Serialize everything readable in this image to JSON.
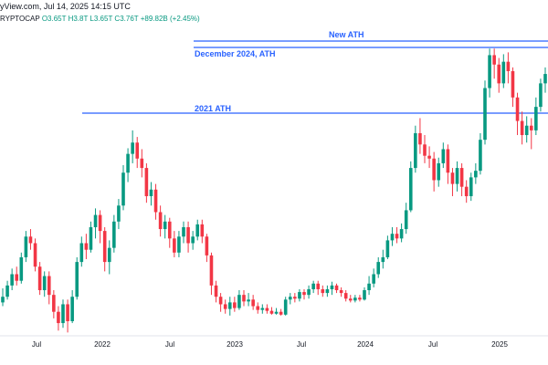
{
  "header": {
    "source_line": "yView.com, Jul 14, 2025 14:15 UTC",
    "symbol": "RYPTOCAP",
    "ohlc": "O3.65T H3.8T L3.65T C3.76T +89.82B (+2.45%)"
  },
  "chart_data": {
    "type": "candlestick",
    "x_tick_labels": [
      "Jul",
      "2022",
      "Jul",
      "2023",
      "Jul",
      "2024",
      "Jul",
      "2025"
    ],
    "annotations": [
      {
        "text": "New ATH"
      },
      {
        "text": "December 2024, ATH"
      },
      {
        "text": "2021 ATH"
      }
    ],
    "colors": {
      "up": "#089981",
      "down": "#f23645",
      "lines": "#2962ff",
      "grid": "#f0f3fa",
      "axis": "#131722"
    },
    "grid": false,
    "candles": [
      [
        0.92,
        0.98,
        0.88,
        1.07
      ],
      [
        0.98,
        1.1,
        0.95,
        1.15
      ],
      [
        1.1,
        1.22,
        1.05,
        1.28
      ],
      [
        1.22,
        1.15,
        1.1,
        1.3
      ],
      [
        1.15,
        1.4,
        1.12,
        1.45
      ],
      [
        1.4,
        1.62,
        1.35,
        1.68
      ],
      [
        1.62,
        1.55,
        1.48,
        1.7
      ],
      [
        1.55,
        1.3,
        1.25,
        1.6
      ],
      [
        1.3,
        1.05,
        1.0,
        1.35
      ],
      [
        1.05,
        1.2,
        0.98,
        1.25
      ],
      [
        1.2,
        1.0,
        0.9,
        1.25
      ],
      [
        1.0,
        0.82,
        0.75,
        1.05
      ],
      [
        0.82,
        0.7,
        0.62,
        0.88
      ],
      [
        0.7,
        0.9,
        0.65,
        0.95
      ],
      [
        0.9,
        0.72,
        0.6,
        0.95
      ],
      [
        0.72,
        0.98,
        0.7,
        1.05
      ],
      [
        0.98,
        1.35,
        0.95,
        1.4
      ],
      [
        1.35,
        1.55,
        1.3,
        1.62
      ],
      [
        1.55,
        1.48,
        1.38,
        1.65
      ],
      [
        1.48,
        1.72,
        1.45,
        1.78
      ],
      [
        1.72,
        1.85,
        1.6,
        1.92
      ],
      [
        1.85,
        1.68,
        1.55,
        1.9
      ],
      [
        1.68,
        1.35,
        1.25,
        1.72
      ],
      [
        1.35,
        1.5,
        1.22,
        1.58
      ],
      [
        1.5,
        1.78,
        1.45,
        1.85
      ],
      [
        1.78,
        1.95,
        1.7,
        2.02
      ],
      [
        1.95,
        2.3,
        1.9,
        2.38
      ],
      [
        2.3,
        2.5,
        2.2,
        2.56
      ],
      [
        2.5,
        2.62,
        2.4,
        2.75
      ],
      [
        2.62,
        2.45,
        2.35,
        2.68
      ],
      [
        2.45,
        2.35,
        2.25,
        2.55
      ],
      [
        2.35,
        2.05,
        1.98,
        2.4
      ],
      [
        2.05,
        2.12,
        1.95,
        2.2
      ],
      [
        2.12,
        1.88,
        1.8,
        2.18
      ],
      [
        1.88,
        1.7,
        1.62,
        1.95
      ],
      [
        1.7,
        1.78,
        1.6,
        1.85
      ],
      [
        1.78,
        1.6,
        1.5,
        1.82
      ],
      [
        1.6,
        1.45,
        1.4,
        1.68
      ],
      [
        1.45,
        1.62,
        1.4,
        1.68
      ],
      [
        1.62,
        1.72,
        1.55,
        1.78
      ],
      [
        1.72,
        1.55,
        1.45,
        1.78
      ],
      [
        1.55,
        1.62,
        1.48,
        1.68
      ],
      [
        1.62,
        1.75,
        1.58,
        1.8
      ],
      [
        1.75,
        1.62,
        1.55,
        1.8
      ],
      [
        1.62,
        1.42,
        1.35,
        1.65
      ],
      [
        1.42,
        1.1,
        1.0,
        1.45
      ],
      [
        1.1,
        0.98,
        0.92,
        1.15
      ],
      [
        0.98,
        0.9,
        0.82,
        1.02
      ],
      [
        0.9,
        0.85,
        0.8,
        0.95
      ],
      [
        0.85,
        0.92,
        0.78,
        0.98
      ],
      [
        0.92,
        0.86,
        0.82,
        0.98
      ],
      [
        0.86,
        1.0,
        0.84,
        1.05
      ],
      [
        1.0,
        0.93,
        0.88,
        1.05
      ],
      [
        0.93,
        0.95,
        0.88,
        1.02
      ],
      [
        0.95,
        0.88,
        0.84,
        1.0
      ],
      [
        0.88,
        0.84,
        0.8,
        0.92
      ],
      [
        0.84,
        0.86,
        0.8,
        0.9
      ],
      [
        0.86,
        0.83,
        0.8,
        0.9
      ],
      [
        0.83,
        0.8,
        0.79,
        0.87
      ],
      [
        0.8,
        0.82,
        0.79,
        0.86
      ],
      [
        0.82,
        0.79,
        0.78,
        0.85
      ],
      [
        0.79,
        0.95,
        0.78,
        0.98
      ],
      [
        0.95,
        0.98,
        0.9,
        1.02
      ],
      [
        0.98,
        0.96,
        0.92,
        1.02
      ],
      [
        0.96,
        1.03,
        0.93,
        1.06
      ],
      [
        1.03,
        1.0,
        0.95,
        1.06
      ],
      [
        1.0,
        1.06,
        0.96,
        1.1
      ],
      [
        1.06,
        1.12,
        1.02,
        1.15
      ],
      [
        1.12,
        1.06,
        1.0,
        1.15
      ],
      [
        1.06,
        1.02,
        0.98,
        1.1
      ],
      [
        1.02,
        1.06,
        0.98,
        1.1
      ],
      [
        1.06,
        1.1,
        1.0,
        1.14
      ],
      [
        1.1,
        1.05,
        1.02,
        1.12
      ],
      [
        1.05,
        1.02,
        0.98,
        1.08
      ],
      [
        1.02,
        0.96,
        0.93,
        1.05
      ],
      [
        0.96,
        0.94,
        0.92,
        1.0
      ],
      [
        0.94,
        0.97,
        0.92,
        1.0
      ],
      [
        0.97,
        0.95,
        0.93,
        1.0
      ],
      [
        0.95,
        1.05,
        0.94,
        1.08
      ],
      [
        1.05,
        1.12,
        1.0,
        1.2
      ],
      [
        1.12,
        1.22,
        1.08,
        1.28
      ],
      [
        1.22,
        1.35,
        1.18,
        1.4
      ],
      [
        1.35,
        1.4,
        1.28,
        1.48
      ],
      [
        1.4,
        1.58,
        1.38,
        1.63
      ],
      [
        1.58,
        1.65,
        1.52,
        1.72
      ],
      [
        1.65,
        1.6,
        1.55,
        1.72
      ],
      [
        1.6,
        1.7,
        1.56,
        1.76
      ],
      [
        1.7,
        1.9,
        1.65,
        1.98
      ],
      [
        1.9,
        2.35,
        1.88,
        2.42
      ],
      [
        2.35,
        2.72,
        2.3,
        2.8
      ],
      [
        2.72,
        2.6,
        2.5,
        2.88
      ],
      [
        2.6,
        2.48,
        2.4,
        2.7
      ],
      [
        2.48,
        2.45,
        2.35,
        2.58
      ],
      [
        2.45,
        2.22,
        2.1,
        2.52
      ],
      [
        2.22,
        2.4,
        2.15,
        2.46
      ],
      [
        2.4,
        2.55,
        2.35,
        2.62
      ],
      [
        2.55,
        2.3,
        2.18,
        2.6
      ],
      [
        2.3,
        2.18,
        2.05,
        2.35
      ],
      [
        2.18,
        2.35,
        2.1,
        2.42
      ],
      [
        2.35,
        2.15,
        2.05,
        2.4
      ],
      [
        2.15,
        2.05,
        1.98,
        2.22
      ],
      [
        2.05,
        2.25,
        2.0,
        2.3
      ],
      [
        2.25,
        2.32,
        2.18,
        2.4
      ],
      [
        2.32,
        2.65,
        2.28,
        2.72
      ],
      [
        2.65,
        3.2,
        2.6,
        3.28
      ],
      [
        3.2,
        3.55,
        3.1,
        3.62
      ],
      [
        3.55,
        3.45,
        3.3,
        3.62
      ],
      [
        3.45,
        3.25,
        3.15,
        3.52
      ],
      [
        3.25,
        3.48,
        3.2,
        3.56
      ],
      [
        3.48,
        3.38,
        3.25,
        3.58
      ],
      [
        3.38,
        3.1,
        3.0,
        3.42
      ],
      [
        3.1,
        2.85,
        2.7,
        3.15
      ],
      [
        2.85,
        2.7,
        2.6,
        2.95
      ],
      [
        2.7,
        2.8,
        2.62,
        2.9
      ],
      [
        2.8,
        2.75,
        2.55,
        2.88
      ],
      [
        2.75,
        3.0,
        2.7,
        3.1
      ],
      [
        3.0,
        3.25,
        2.95,
        3.3
      ],
      [
        3.25,
        3.35,
        3.15,
        3.42
      ]
    ]
  }
}
